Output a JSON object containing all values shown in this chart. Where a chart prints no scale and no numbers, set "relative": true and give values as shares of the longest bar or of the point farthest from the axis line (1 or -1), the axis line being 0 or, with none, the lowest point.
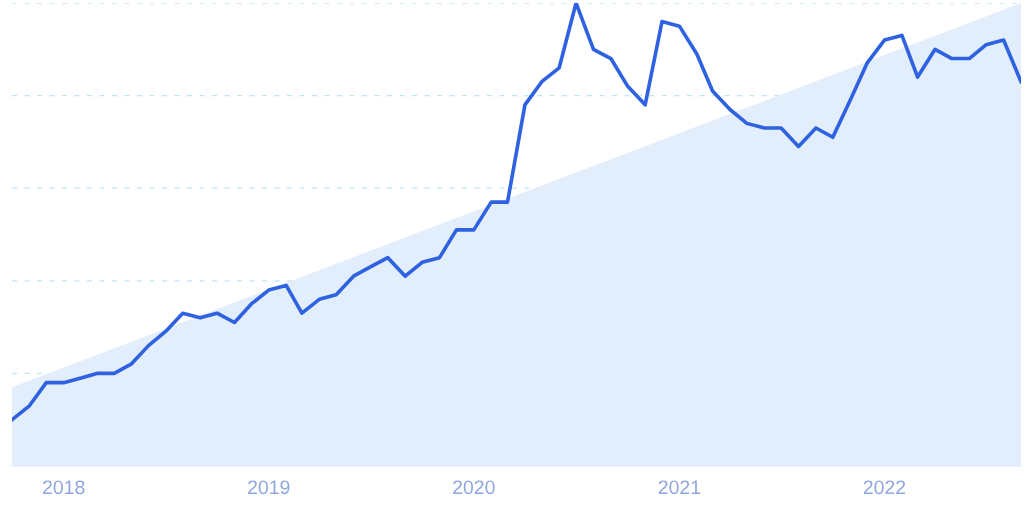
{
  "chart_data": {
    "type": "line",
    "relative": true,
    "ref_lines": [
      {
        "axis": "y",
        "value": 0.2,
        "color": "#bfe6f7",
        "line_style": "dashed"
      },
      {
        "axis": "y",
        "value": 0.4,
        "color": "#bfe6f7",
        "line_style": "dashed"
      },
      {
        "axis": "y",
        "value": 0.6,
        "color": "#bfe6f7",
        "line_style": "dashed"
      },
      {
        "axis": "y",
        "value": 0.8,
        "color": "#bfe6f7",
        "line_style": "dashed"
      },
      {
        "axis": "y",
        "value": 1.0,
        "color": "#bfe6f7",
        "line_style": "dashed"
      }
    ],
    "line_style": "solid",
    "marker": "none",
    "x": [
      "2017-10",
      "2017-11",
      "2017-12",
      "2018-01",
      "2018-02",
      "2018-03",
      "2018-04",
      "2018-05",
      "2018-06",
      "2018-07",
      "2018-08",
      "2018-09",
      "2018-10",
      "2018-11",
      "2018-12",
      "2019-01",
      "2019-02",
      "2019-03",
      "2019-04",
      "2019-05",
      "2019-06",
      "2019-07",
      "2019-08",
      "2019-09",
      "2019-10",
      "2019-11",
      "2019-12",
      "2020-01",
      "2020-02",
      "2020-03",
      "2020-04",
      "2020-05",
      "2020-06",
      "2020-07",
      "2020-08",
      "2020-09",
      "2020-10",
      "2020-11",
      "2020-12",
      "2021-01",
      "2021-02",
      "2021-03",
      "2021-04",
      "2021-05",
      "2021-06",
      "2021-07",
      "2021-08",
      "2021-09",
      "2021-10",
      "2021-11",
      "2021-12",
      "2022-01",
      "2022-02",
      "2022-03",
      "2022-04",
      "2022-05",
      "2022-06",
      "2022-07",
      "2022-08",
      "2022-09"
    ],
    "xlim": [
      "2017-10",
      "2022-09"
    ],
    "xticks": [
      {
        "value": "2018-01",
        "label": "2018"
      },
      {
        "value": "2019-01",
        "label": "2019"
      },
      {
        "value": "2020-01",
        "label": "2020"
      },
      {
        "value": "2021-01",
        "label": "2021"
      },
      {
        "value": "2022-01",
        "label": "2022"
      }
    ],
    "series": [
      {
        "type": "area",
        "color": "#e3eefc",
        "x": [
          "2017-10",
          "2022-09"
        ],
        "values": [
          0.17,
          1.0
        ]
      },
      {
        "color": "#2f62e0",
        "values": [
          0.1,
          0.13,
          0.18,
          0.18,
          0.19,
          0.2,
          0.2,
          0.22,
          0.26,
          0.29,
          0.33,
          0.32,
          0.33,
          0.31,
          0.35,
          0.38,
          0.39,
          0.33,
          0.36,
          0.37,
          0.41,
          0.43,
          0.45,
          0.41,
          0.44,
          0.45,
          0.51,
          0.51,
          0.57,
          0.57,
          0.78,
          0.83,
          0.86,
          1.0,
          0.9,
          0.88,
          0.82,
          0.78,
          0.96,
          0.95,
          0.89,
          0.81,
          0.77,
          0.74,
          0.73,
          0.73,
          0.69,
          0.73,
          0.71,
          0.79,
          0.87,
          0.92,
          0.93,
          0.84,
          0.9,
          0.88,
          0.88,
          0.91,
          0.92,
          0.83
        ]
      }
    ]
  }
}
